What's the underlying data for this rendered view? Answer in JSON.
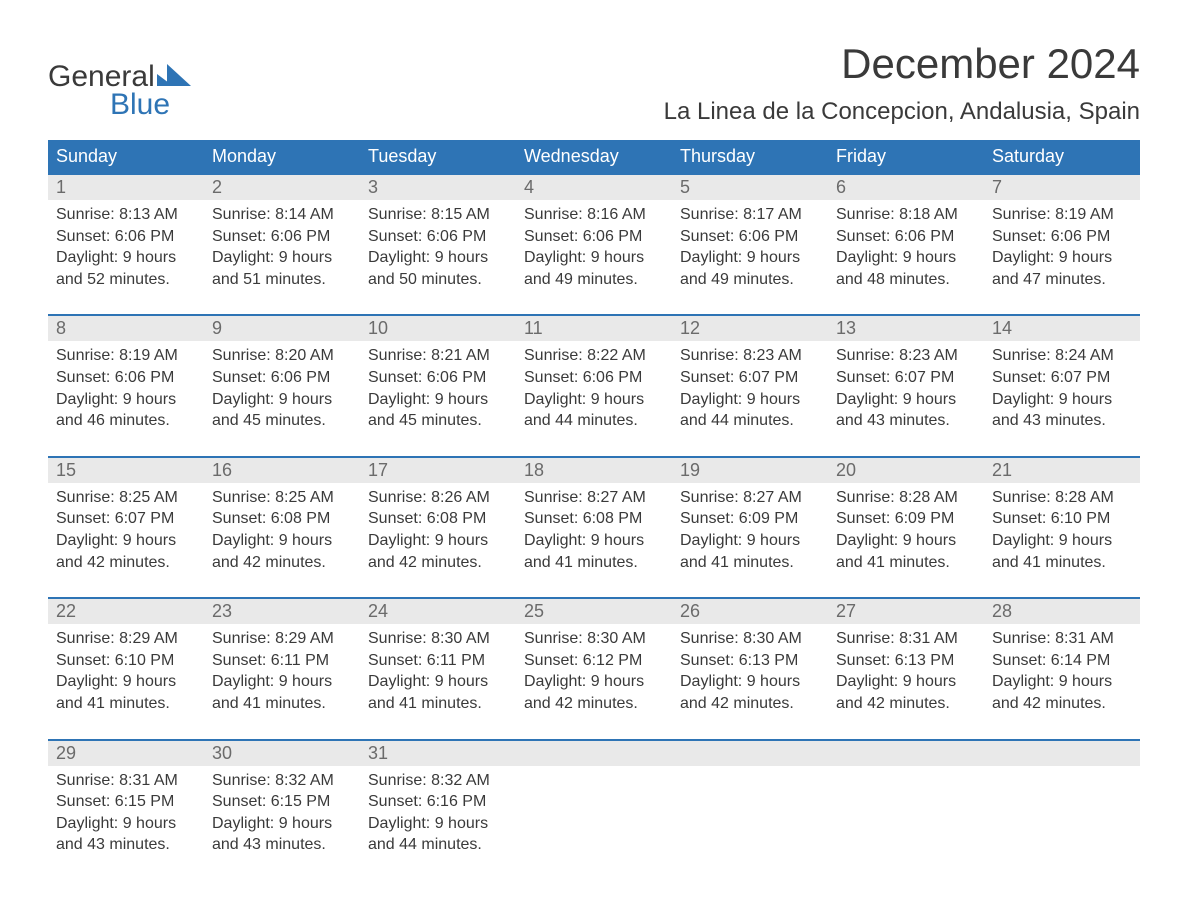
{
  "logo": {
    "line1": "General",
    "line2": "Blue",
    "mark_color": "#2e74b5"
  },
  "title": "December 2024",
  "location": "La Linea de la Concepcion, Andalusia, Spain",
  "colors": {
    "header_bg": "#2e74b5",
    "header_text": "#ffffff",
    "daynum_bg": "#e9e9e9",
    "daynum_border": "#2e74b5",
    "body_text": "#3a3a3a",
    "daynum_text": "#6b6b6b",
    "background": "#ffffff"
  },
  "typography": {
    "title_fontsize": 42,
    "location_fontsize": 24,
    "dayheader_fontsize": 18,
    "daynum_fontsize": 18,
    "cell_fontsize": 16,
    "logo_fontsize": 30,
    "font_family": "Arial"
  },
  "day_headers": [
    "Sunday",
    "Monday",
    "Tuesday",
    "Wednesday",
    "Thursday",
    "Friday",
    "Saturday"
  ],
  "weeks": [
    {
      "nums": [
        "1",
        "2",
        "3",
        "4",
        "5",
        "6",
        "7"
      ],
      "cells": [
        "Sunrise: 8:13 AM\nSunset: 6:06 PM\nDaylight: 9 hours and 52 minutes.",
        "Sunrise: 8:14 AM\nSunset: 6:06 PM\nDaylight: 9 hours and 51 minutes.",
        "Sunrise: 8:15 AM\nSunset: 6:06 PM\nDaylight: 9 hours and 50 minutes.",
        "Sunrise: 8:16 AM\nSunset: 6:06 PM\nDaylight: 9 hours and 49 minutes.",
        "Sunrise: 8:17 AM\nSunset: 6:06 PM\nDaylight: 9 hours and 49 minutes.",
        "Sunrise: 8:18 AM\nSunset: 6:06 PM\nDaylight: 9 hours and 48 minutes.",
        "Sunrise: 8:19 AM\nSunset: 6:06 PM\nDaylight: 9 hours and 47 minutes."
      ]
    },
    {
      "nums": [
        "8",
        "9",
        "10",
        "11",
        "12",
        "13",
        "14"
      ],
      "cells": [
        "Sunrise: 8:19 AM\nSunset: 6:06 PM\nDaylight: 9 hours and 46 minutes.",
        "Sunrise: 8:20 AM\nSunset: 6:06 PM\nDaylight: 9 hours and 45 minutes.",
        "Sunrise: 8:21 AM\nSunset: 6:06 PM\nDaylight: 9 hours and 45 minutes.",
        "Sunrise: 8:22 AM\nSunset: 6:06 PM\nDaylight: 9 hours and 44 minutes.",
        "Sunrise: 8:23 AM\nSunset: 6:07 PM\nDaylight: 9 hours and 44 minutes.",
        "Sunrise: 8:23 AM\nSunset: 6:07 PM\nDaylight: 9 hours and 43 minutes.",
        "Sunrise: 8:24 AM\nSunset: 6:07 PM\nDaylight: 9 hours and 43 minutes."
      ]
    },
    {
      "nums": [
        "15",
        "16",
        "17",
        "18",
        "19",
        "20",
        "21"
      ],
      "cells": [
        "Sunrise: 8:25 AM\nSunset: 6:07 PM\nDaylight: 9 hours and 42 minutes.",
        "Sunrise: 8:25 AM\nSunset: 6:08 PM\nDaylight: 9 hours and 42 minutes.",
        "Sunrise: 8:26 AM\nSunset: 6:08 PM\nDaylight: 9 hours and 42 minutes.",
        "Sunrise: 8:27 AM\nSunset: 6:08 PM\nDaylight: 9 hours and 41 minutes.",
        "Sunrise: 8:27 AM\nSunset: 6:09 PM\nDaylight: 9 hours and 41 minutes.",
        "Sunrise: 8:28 AM\nSunset: 6:09 PM\nDaylight: 9 hours and 41 minutes.",
        "Sunrise: 8:28 AM\nSunset: 6:10 PM\nDaylight: 9 hours and 41 minutes."
      ]
    },
    {
      "nums": [
        "22",
        "23",
        "24",
        "25",
        "26",
        "27",
        "28"
      ],
      "cells": [
        "Sunrise: 8:29 AM\nSunset: 6:10 PM\nDaylight: 9 hours and 41 minutes.",
        "Sunrise: 8:29 AM\nSunset: 6:11 PM\nDaylight: 9 hours and 41 minutes.",
        "Sunrise: 8:30 AM\nSunset: 6:11 PM\nDaylight: 9 hours and 41 minutes.",
        "Sunrise: 8:30 AM\nSunset: 6:12 PM\nDaylight: 9 hours and 42 minutes.",
        "Sunrise: 8:30 AM\nSunset: 6:13 PM\nDaylight: 9 hours and 42 minutes.",
        "Sunrise: 8:31 AM\nSunset: 6:13 PM\nDaylight: 9 hours and 42 minutes.",
        "Sunrise: 8:31 AM\nSunset: 6:14 PM\nDaylight: 9 hours and 42 minutes."
      ]
    },
    {
      "nums": [
        "29",
        "30",
        "31",
        "",
        "",
        "",
        ""
      ],
      "cells": [
        "Sunrise: 8:31 AM\nSunset: 6:15 PM\nDaylight: 9 hours and 43 minutes.",
        "Sunrise: 8:32 AM\nSunset: 6:15 PM\nDaylight: 9 hours and 43 minutes.",
        "Sunrise: 8:32 AM\nSunset: 6:16 PM\nDaylight: 9 hours and 44 minutes.",
        "",
        "",
        "",
        ""
      ]
    }
  ]
}
